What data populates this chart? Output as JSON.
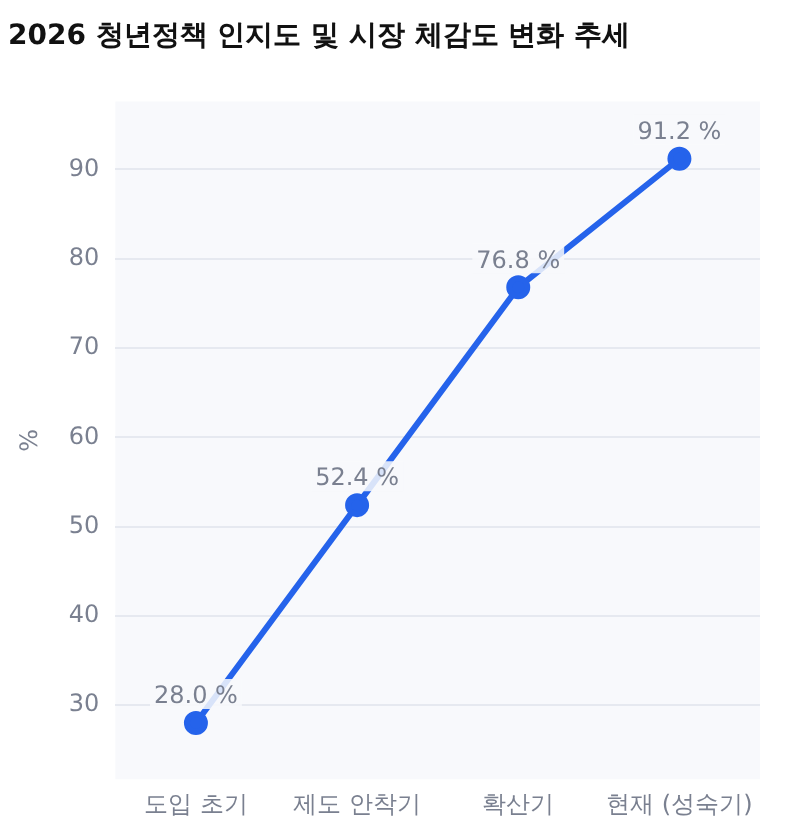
{
  "chart_data": {
    "type": "line",
    "title": "2026 청년정책 인지도 및 시장 체감도 변화 추세",
    "ylabel": "%",
    "categories": [
      "도입 초기",
      "제도 안착기",
      "확산기",
      "현재 (성숙기)"
    ],
    "series": [
      {
        "color": "#2563eb",
        "values": [
          28.0,
          52.4,
          76.8,
          91.2
        ],
        "value_labels": [
          "28.0 %",
          "52.4 %",
          "76.8 %",
          "91.2 %"
        ]
      }
    ],
    "ylim": [
      21.7,
      97.6
    ],
    "yticks": [
      30,
      40,
      50,
      60,
      70,
      80,
      90
    ],
    "grid": "y",
    "legend": false,
    "marker": "circle",
    "line_style": "solid"
  }
}
